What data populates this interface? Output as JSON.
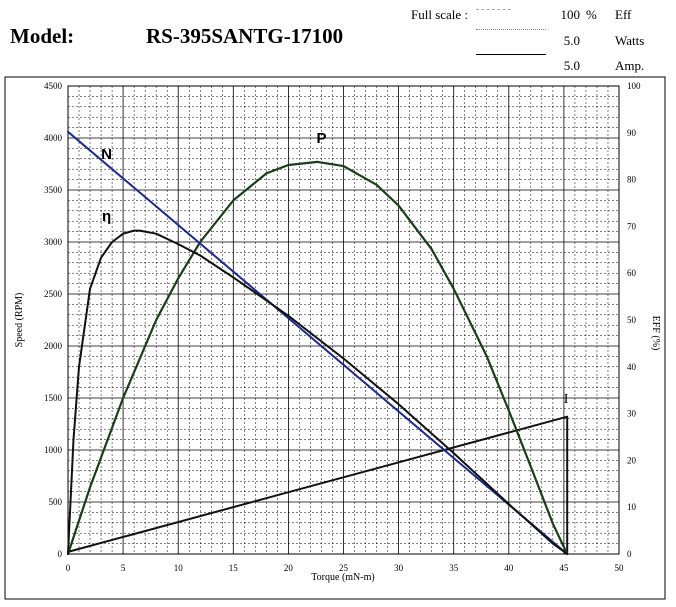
{
  "header": {
    "model_label": "Model:",
    "model_value": "RS-395SANTG-17100",
    "full_scale_label": "Full scale :",
    "scale_rows": [
      {
        "value": "100",
        "unit_symbol": "%",
        "unit": "Eff"
      },
      {
        "value": "5.0",
        "unit_symbol": "",
        "unit": "Watts"
      },
      {
        "value": "5.0",
        "unit_symbol": "",
        "unit": "Amp."
      }
    ]
  },
  "chart_data": {
    "type": "line",
    "xlabel": "Torque (mN-m)",
    "ylabel": "Speed (RPM)",
    "y2label": "EFF (%)",
    "xlim": [
      0,
      50
    ],
    "ylim": [
      0,
      4500
    ],
    "y2lim": [
      0,
      100
    ],
    "x_ticks": [
      "0",
      "5",
      "10",
      "15",
      "20",
      "25",
      "30",
      "35",
      "40",
      "45",
      "50"
    ],
    "y_ticks": [
      "0",
      "500",
      "1000",
      "1500",
      "2000",
      "2500",
      "3000",
      "3500",
      "4000",
      "4500"
    ],
    "y2_ticks": [
      "0",
      "10",
      "20",
      "30",
      "40",
      "50",
      "60",
      "70",
      "80",
      "90",
      "100"
    ],
    "grid": true,
    "colors": {
      "speed": "#1f2a8c",
      "efficiency": "#111111",
      "power": "#1a3d1a",
      "current": "#111111"
    },
    "series": [
      {
        "name": "N",
        "axis": "y",
        "x": [
          0,
          45.3
        ],
        "values": [
          4060,
          0
        ]
      },
      {
        "name": "η",
        "axis": "y",
        "x": [
          0,
          0.5,
          1,
          2,
          3,
          4,
          5,
          6,
          6.5,
          8,
          10,
          12,
          15,
          20,
          25,
          30,
          35,
          40,
          42,
          44,
          45.3
        ],
        "values": [
          0,
          1100,
          1800,
          2550,
          2850,
          3000,
          3080,
          3110,
          3110,
          3080,
          2980,
          2870,
          2660,
          2290,
          1880,
          1440,
          970,
          480,
          290,
          100,
          0
        ]
      },
      {
        "name": "P",
        "axis": "y",
        "x": [
          0,
          2,
          5,
          8,
          10,
          12,
          15,
          18,
          20,
          22.65,
          25,
          28,
          30,
          33,
          35,
          38,
          40,
          42,
          44,
          45.3
        ],
        "values": [
          0,
          640,
          1500,
          2250,
          2650,
          3000,
          3400,
          3660,
          3740,
          3770,
          3730,
          3550,
          3350,
          2930,
          2550,
          1900,
          1380,
          840,
          290,
          0
        ]
      },
      {
        "name": "I",
        "axis": "y",
        "x": [
          0,
          45.3,
          45.3
        ],
        "values": [
          20,
          1320,
          0
        ]
      }
    ]
  }
}
